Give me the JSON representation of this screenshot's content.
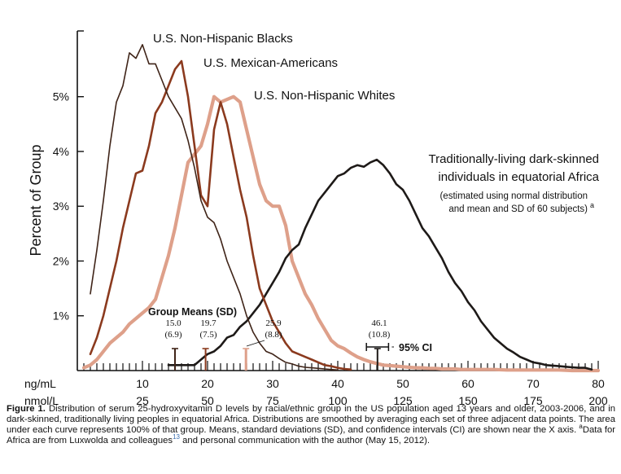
{
  "chart_data": {
    "type": "line",
    "ylabel": "Percent of Group",
    "xlim": [
      0,
      80
    ],
    "ylim": [
      0,
      6.2
    ],
    "x_unit_1": "ng/mL",
    "x_unit_2": "nmol/L",
    "x_ticks_ng": [
      10,
      20,
      30,
      40,
      50,
      60,
      70,
      80
    ],
    "x_ticks_nmol": [
      "25",
      "50",
      "75",
      "100",
      "125",
      "150",
      "175",
      "200"
    ],
    "y_ticks": [
      {
        "v": 1,
        "label": "1%"
      },
      {
        "v": 2,
        "label": "2%"
      },
      {
        "v": 3,
        "label": "3%"
      },
      {
        "v": 4,
        "label": "4%"
      },
      {
        "v": 5,
        "label": "5%"
      }
    ],
    "series": [
      {
        "name": "U.S. Non-Hispanic Blacks",
        "color": "#3f2418",
        "x": [
          2,
          3,
          4,
          5,
          6,
          7,
          8,
          9,
          10,
          11,
          12,
          13,
          14,
          15,
          16,
          17,
          18,
          19,
          20,
          21,
          22,
          23,
          24,
          25,
          26,
          27,
          28,
          29,
          30,
          31,
          32,
          33,
          34,
          35,
          36,
          37,
          38,
          39,
          40
        ],
        "y": [
          1.4,
          2.2,
          3.1,
          4.1,
          4.9,
          5.2,
          5.8,
          5.7,
          5.95,
          5.6,
          5.6,
          5.3,
          5.0,
          4.8,
          4.6,
          4.2,
          3.7,
          3.1,
          2.8,
          2.7,
          2.4,
          2.0,
          1.7,
          1.4,
          1.0,
          0.7,
          0.5,
          0.35,
          0.3,
          0.22,
          0.15,
          0.12,
          0.08,
          0.06,
          0.05,
          0.04,
          0.03,
          0.02,
          0.01
        ]
      },
      {
        "name": "U.S. Mexican-Americans",
        "color": "#8b3a1e",
        "x": [
          2,
          3,
          4,
          5,
          6,
          7,
          8,
          9,
          10,
          11,
          12,
          13,
          14,
          15,
          16,
          17,
          18,
          19,
          20,
          21,
          22,
          23,
          24,
          25,
          26,
          27,
          28,
          29,
          30,
          31,
          32,
          33,
          34,
          35,
          36,
          37,
          38,
          39,
          40,
          41,
          42
        ],
        "y": [
          0.3,
          0.6,
          1.0,
          1.5,
          2.0,
          2.6,
          3.1,
          3.6,
          3.65,
          4.1,
          4.7,
          4.9,
          5.2,
          5.5,
          5.65,
          5.0,
          4.1,
          3.2,
          3.0,
          4.4,
          4.9,
          4.5,
          3.9,
          3.3,
          2.8,
          2.1,
          1.5,
          1.2,
          0.9,
          0.7,
          0.5,
          0.35,
          0.3,
          0.25,
          0.2,
          0.15,
          0.1,
          0.08,
          0.05,
          0.03,
          0.02
        ]
      },
      {
        "name": "U.S. Non-Hispanic Whites",
        "color": "#dea08a",
        "x": [
          1,
          2,
          3,
          4,
          5,
          6,
          7,
          8,
          9,
          10,
          11,
          12,
          13,
          14,
          15,
          16,
          17,
          18,
          19,
          20,
          21,
          22,
          23,
          24,
          25,
          26,
          27,
          28,
          29,
          30,
          31,
          32,
          33,
          34,
          35,
          36,
          37,
          38,
          39,
          40,
          41,
          42,
          43,
          44,
          45,
          46,
          47,
          48,
          49,
          50,
          51,
          52,
          53,
          54,
          55,
          56,
          57,
          58,
          59,
          60,
          62,
          64,
          66,
          68,
          70,
          72,
          74,
          76,
          78,
          80
        ],
        "y": [
          0.05,
          0.1,
          0.2,
          0.35,
          0.5,
          0.6,
          0.7,
          0.85,
          0.95,
          1.05,
          1.15,
          1.3,
          1.7,
          2.1,
          2.6,
          3.2,
          3.8,
          3.95,
          4.1,
          4.5,
          5.0,
          4.9,
          4.95,
          5.0,
          4.9,
          4.4,
          3.9,
          3.4,
          3.1,
          3.0,
          3.0,
          2.65,
          2.0,
          1.7,
          1.4,
          1.2,
          0.95,
          0.75,
          0.55,
          0.45,
          0.4,
          0.32,
          0.25,
          0.2,
          0.16,
          0.13,
          0.1,
          0.09,
          0.08,
          0.07,
          0.06,
          0.05,
          0.05,
          0.04,
          0.04,
          0.03,
          0.03,
          0.03,
          0.02,
          0.02,
          0.02,
          0.02,
          0.01,
          0.01,
          0.01,
          0.01,
          0.01,
          0.0,
          0.0,
          0.0
        ]
      },
      {
        "name": "Traditionally-living dark-skinned individuals in equatorial Africa",
        "color": "#1e1a18",
        "x": [
          14,
          16,
          18,
          19,
          20,
          21,
          22,
          23,
          24,
          25,
          26,
          27,
          28,
          29,
          30,
          31,
          32,
          33,
          34,
          35,
          36,
          37,
          38,
          39,
          40,
          41,
          42,
          43,
          44,
          45,
          46,
          47,
          48,
          49,
          50,
          51,
          52,
          53,
          54,
          55,
          56,
          57,
          58,
          59,
          60,
          61,
          62,
          63,
          64,
          65,
          66,
          67,
          68,
          69,
          70,
          71,
          72,
          73,
          74,
          75,
          76,
          77,
          78,
          79
        ],
        "y": [
          0.1,
          0.1,
          0.1,
          0.2,
          0.3,
          0.35,
          0.45,
          0.6,
          0.65,
          0.8,
          0.9,
          1.05,
          1.2,
          1.4,
          1.6,
          1.8,
          2.05,
          2.2,
          2.3,
          2.6,
          2.85,
          3.1,
          3.25,
          3.4,
          3.55,
          3.6,
          3.7,
          3.75,
          3.72,
          3.8,
          3.85,
          3.75,
          3.6,
          3.4,
          3.3,
          3.1,
          2.85,
          2.6,
          2.45,
          2.25,
          2.05,
          1.8,
          1.6,
          1.45,
          1.25,
          1.1,
          0.9,
          0.75,
          0.6,
          0.5,
          0.4,
          0.33,
          0.25,
          0.2,
          0.15,
          0.13,
          0.1,
          0.09,
          0.08,
          0.07,
          0.06,
          0.05,
          0.05,
          0.02
        ]
      }
    ],
    "series_labels": [
      {
        "lines": [
          "U.S. Non-Hispanic Blacks"
        ],
        "cls": "ser"
      },
      {
        "lines": [
          "U.S. Mexican-Americans"
        ],
        "cls": "ser"
      },
      {
        "lines": [
          "U.S. Non-Hispanic Whites"
        ],
        "cls": "ser"
      },
      {
        "lines": [
          "Traditionally-living dark-skinned",
          "individuals in equatorial Africa"
        ],
        "cls": "ser"
      }
    ],
    "note_lines": [
      "(estimated using normal distribution",
      "and mean and SD of 60 subjects)"
    ],
    "note_sup": "a",
    "group_means_title": "Group Means (SD)",
    "means": [
      {
        "mean": "15.0",
        "sd": "(6.9)",
        "x": 15.0,
        "color": "#3f2418"
      },
      {
        "mean": "19.7",
        "sd": "(7.5)",
        "x": 19.7,
        "color": "#8b3a1e"
      },
      {
        "mean": "25.9",
        "sd": "(8.8)",
        "x": 25.9,
        "color": "#dea08a"
      },
      {
        "mean": "46.1",
        "sd": "(10.8)",
        "x": 46.1,
        "color": "#1e1a18"
      }
    ],
    "ci_label": "95% CI",
    "ci_range": [
      44.4,
      47.8
    ]
  },
  "caption": {
    "label": "Figure 1.",
    "text": "Distribution of serum 25-hydroxyvitamin D levels by racial/ethnic group in the US population aged 13 years and older, 2003-2006, and in dark-skinned, traditionally living peoples in equatorial Africa. Distributions are smoothed by averaging each set of three adjacent data points. The area under each curve represents 100% of that group. Means, standard deviations (SD), and confidence intervals (CI) are shown near the X axis.",
    "sup_a": "a",
    "text2": "Data for Africa are from Luxwolda and colleagues",
    "ref": "13",
    "text3": "and personal communication with the author (May 15, 2012)."
  }
}
